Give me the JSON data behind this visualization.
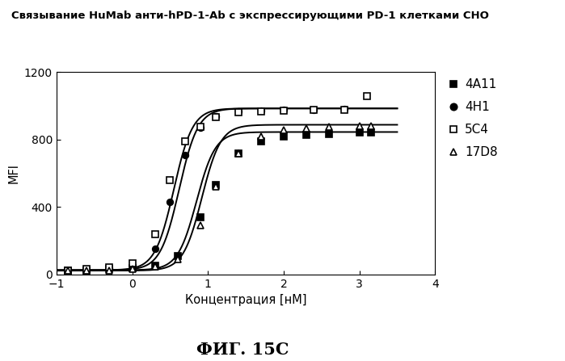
{
  "title": "Связывание HuMab анти-hPD-1-Ab с экспрессирующими PD-1 клетками CHO",
  "xlabel": "Концентрация [нМ]",
  "ylabel": "MFI",
  "caption": "ФИГ. 15С",
  "xlim": [
    -1,
    4
  ],
  "ylim": [
    0,
    1200
  ],
  "xticks": [
    -1,
    0,
    1,
    2,
    3,
    4
  ],
  "yticks": [
    0,
    400,
    800,
    1200
  ],
  "series": [
    {
      "label": "4A11",
      "marker": "s",
      "filled": true,
      "x_data": [
        -0.85,
        -0.6,
        -0.3,
        0.0,
        0.3,
        0.6,
        0.9,
        1.1,
        1.4,
        1.7,
        2.0,
        2.3,
        2.6,
        3.0,
        3.15
      ],
      "y_data": [
        25,
        25,
        30,
        35,
        50,
        110,
        340,
        530,
        720,
        790,
        820,
        830,
        835,
        840,
        842
      ],
      "curve_params": {
        "bottom": 25,
        "top": 845,
        "ec50": 0.85,
        "slope": 3.5
      }
    },
    {
      "label": "4H1",
      "marker": "o",
      "filled": true,
      "x_data": [
        -0.85,
        -0.6,
        -0.3,
        0.0,
        0.3,
        0.5,
        0.7,
        0.9,
        1.1,
        1.4,
        1.7,
        2.0,
        2.4,
        2.8
      ],
      "y_data": [
        25,
        28,
        35,
        50,
        150,
        430,
        710,
        870,
        940,
        965,
        970,
        975,
        978,
        980
      ],
      "curve_params": {
        "bottom": 25,
        "top": 985,
        "ec50": 0.55,
        "slope": 3.5
      }
    },
    {
      "label": "5C4",
      "marker": "s",
      "filled": false,
      "x_data": [
        -0.85,
        -0.6,
        -0.3,
        0.0,
        0.3,
        0.5,
        0.7,
        0.9,
        1.1,
        1.4,
        1.7,
        2.0,
        2.4,
        2.8,
        3.1
      ],
      "y_data": [
        25,
        30,
        40,
        65,
        240,
        560,
        790,
        875,
        935,
        960,
        968,
        972,
        975,
        978,
        1060
      ],
      "curve_params": {
        "bottom": 25,
        "top": 985,
        "ec50": 0.62,
        "slope": 3.5
      }
    },
    {
      "label": "17D8",
      "marker": "^",
      "filled": false,
      "x_data": [
        -0.85,
        -0.6,
        -0.3,
        0.0,
        0.3,
        0.6,
        0.9,
        1.1,
        1.4,
        1.7,
        2.0,
        2.3,
        2.6,
        3.0,
        3.15
      ],
      "y_data": [
        22,
        22,
        25,
        30,
        45,
        90,
        290,
        520,
        720,
        820,
        855,
        868,
        875,
        880,
        882
      ],
      "curve_params": {
        "bottom": 22,
        "top": 888,
        "ec50": 0.92,
        "slope": 3.5
      }
    }
  ],
  "background_color": "#ffffff",
  "line_color": "#000000",
  "font_color": "#000000"
}
